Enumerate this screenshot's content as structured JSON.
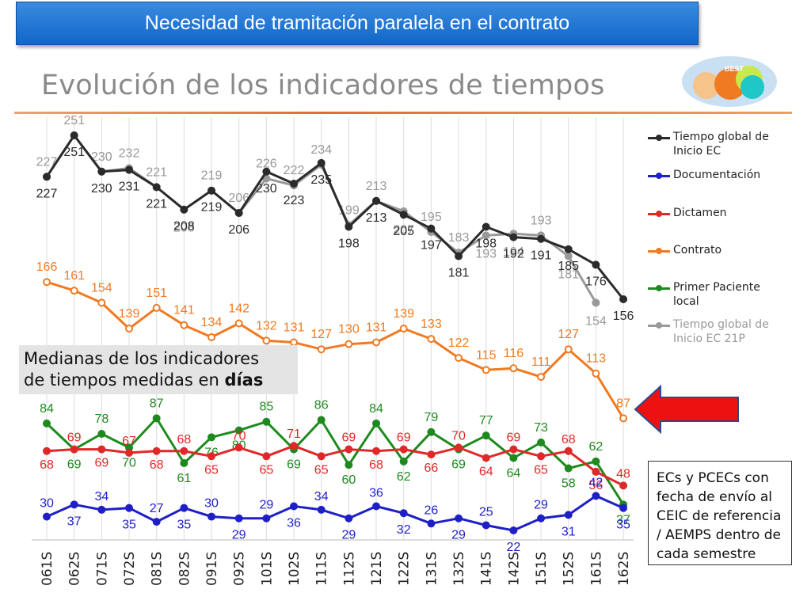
{
  "banner": {
    "title": "Necesidad de tramitación paralela en el contrato"
  },
  "subtitle": "Evolución de los indicadores de tiempos",
  "logo": {
    "text": "BEST"
  },
  "medianas": {
    "line1": "Medianas de los indicadores",
    "line2_prefix": "de tiempos medidas en ",
    "line2_bold": "días"
  },
  "note": {
    "text": "ECs y PCECs con fecha de envío al CEIC de referencia / AEMPS dentro de cada semestre"
  },
  "colors": {
    "tiempo_global": "#2b2b2b",
    "documentacion": "#1f1fc8",
    "dictamen": "#e02828",
    "contrato": "#f07a22",
    "primer_paciente": "#1e8a1e",
    "tiempo_global_21p": "#999999",
    "arrow": "#ee1111"
  },
  "chart_data": {
    "type": "line",
    "categories": [
      "061S",
      "062S",
      "071S",
      "072S",
      "081S",
      "082S",
      "091S",
      "092S",
      "101S",
      "102S",
      "111S",
      "112S",
      "121S",
      "122S",
      "131S",
      "132S",
      "141S",
      "142S",
      "151S",
      "152S",
      "161S",
      "162S"
    ],
    "series": [
      {
        "key": "tiempo_global_21p",
        "name": "Tiempo global de Inicio EC 21P",
        "values": [
          227,
          251,
          230,
          232,
          221,
          208,
          219,
          206,
          226,
          222,
          234,
          199,
          213,
          207,
          195,
          183,
          193,
          194,
          193,
          181,
          154,
          null
        ]
      },
      {
        "key": "tiempo_global",
        "name": "Tiempo global de Inicio EC",
        "values": [
          227,
          251,
          230,
          231,
          221,
          208,
          219,
          206,
          230,
          223,
          235,
          198,
          213,
          205,
          197,
          181,
          198,
          192,
          191,
          185,
          176,
          156
        ]
      },
      {
        "key": "contrato",
        "name": "Contrato",
        "values": [
          166,
          161,
          154,
          139,
          151,
          141,
          134,
          142,
          132,
          131,
          127,
          130,
          131,
          139,
          133,
          122,
          115,
          116,
          111,
          127,
          113,
          87
        ]
      },
      {
        "key": "primer_paciente",
        "name": "Primer Paciente local",
        "values": [
          84,
          69,
          78,
          70,
          87,
          61,
          76,
          80,
          85,
          69,
          86,
          60,
          84,
          62,
          79,
          69,
          77,
          64,
          73,
          58,
          62,
          37
        ]
      },
      {
        "key": "dictamen",
        "name": "Dictamen",
        "values": [
          68,
          69,
          69,
          67,
          68,
          68,
          65,
          70,
          65,
          71,
          65,
          69,
          68,
          69,
          66,
          70,
          64,
          69,
          65,
          68,
          56,
          48
        ]
      },
      {
        "key": "documentacion",
        "name": "Documentación",
        "values": [
          30,
          37,
          34,
          35,
          27,
          35,
          30,
          29,
          29,
          36,
          34,
          29,
          36,
          32,
          26,
          29,
          25,
          22,
          29,
          31,
          42,
          35
        ]
      }
    ],
    "legend_order": [
      "tiempo_global",
      "documentacion",
      "dictamen",
      "contrato",
      "primer_paciente",
      "tiempo_global_21p"
    ],
    "legend": [
      {
        "key": "tiempo_global",
        "lines": [
          "Tiempo global de",
          "Inicio EC"
        ]
      },
      {
        "key": "documentacion",
        "lines": [
          "Documentación"
        ]
      },
      {
        "key": "dictamen",
        "lines": [
          "Dictamen"
        ]
      },
      {
        "key": "contrato",
        "lines": [
          "Contrato"
        ]
      },
      {
        "key": "primer_paciente",
        "lines": [
          "Primer Paciente",
          "local"
        ]
      },
      {
        "key": "tiempo_global_21p",
        "lines": [
          "Tiempo global de",
          "Inicio EC 21P"
        ]
      }
    ],
    "xlabel": "",
    "ylabel": "",
    "legend_position": "right",
    "grid": true
  }
}
